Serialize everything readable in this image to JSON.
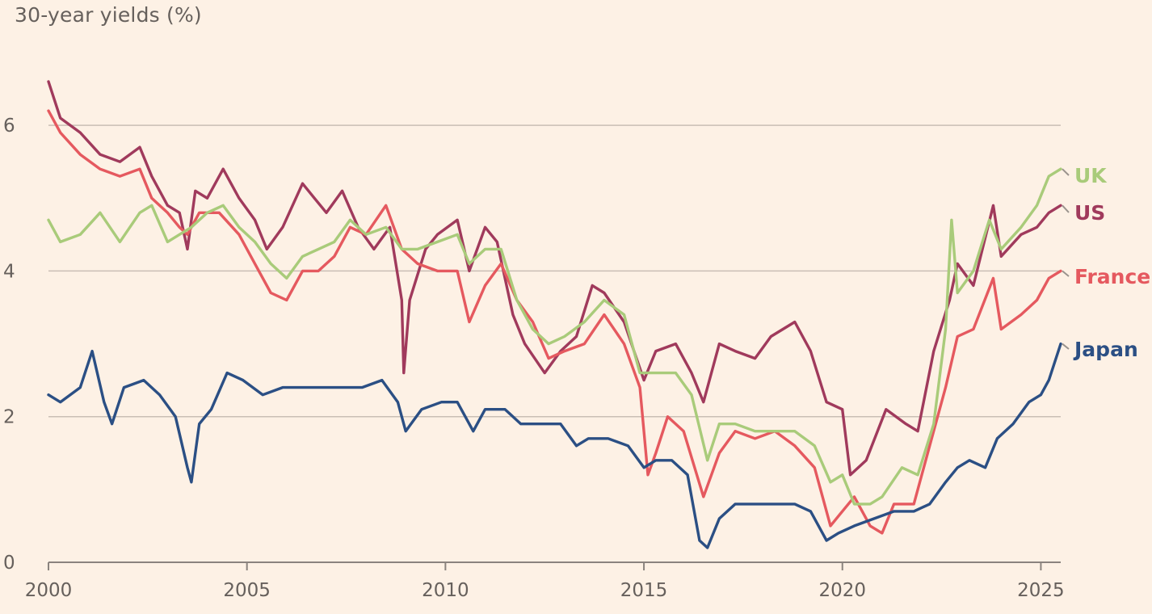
{
  "chart_data": {
    "type": "line",
    "title": "",
    "ylabel": "30-year yields (%)",
    "xlabel": "",
    "xlim": [
      2000,
      2025.5
    ],
    "ylim": [
      0,
      6.8
    ],
    "x_ticks": [
      2000,
      2005,
      2010,
      2015,
      2020,
      2025
    ],
    "y_ticks": [
      0,
      2,
      4,
      6
    ],
    "grid": "horizontal",
    "legend": "direct labels at right end of each line",
    "colors": {
      "UK": "#A9CB7A",
      "US": "#A03A5C",
      "France": "#E5595F",
      "Japan": "#2B4F84"
    },
    "series": [
      {
        "name": "US",
        "points": [
          [
            2000.0,
            6.6
          ],
          [
            2000.3,
            6.1
          ],
          [
            2000.8,
            5.9
          ],
          [
            2001.3,
            5.6
          ],
          [
            2001.8,
            5.5
          ],
          [
            2002.3,
            5.7
          ],
          [
            2002.6,
            5.3
          ],
          [
            2003.0,
            4.9
          ],
          [
            2003.3,
            4.8
          ],
          [
            2003.5,
            4.3
          ],
          [
            2003.7,
            5.1
          ],
          [
            2004.0,
            5.0
          ],
          [
            2004.4,
            5.4
          ],
          [
            2004.8,
            5.0
          ],
          [
            2005.2,
            4.7
          ],
          [
            2005.5,
            4.3
          ],
          [
            2005.9,
            4.6
          ],
          [
            2006.4,
            5.2
          ],
          [
            2006.7,
            5.0
          ],
          [
            2007.0,
            4.8
          ],
          [
            2007.4,
            5.1
          ],
          [
            2007.8,
            4.6
          ],
          [
            2008.2,
            4.3
          ],
          [
            2008.6,
            4.6
          ],
          [
            2008.9,
            3.6
          ],
          [
            2008.95,
            2.6
          ],
          [
            2009.1,
            3.6
          ],
          [
            2009.5,
            4.3
          ],
          [
            2009.8,
            4.5
          ],
          [
            2010.3,
            4.7
          ],
          [
            2010.6,
            4.0
          ],
          [
            2011.0,
            4.6
          ],
          [
            2011.3,
            4.4
          ],
          [
            2011.7,
            3.4
          ],
          [
            2012.0,
            3.0
          ],
          [
            2012.5,
            2.6
          ],
          [
            2012.9,
            2.9
          ],
          [
            2013.3,
            3.1
          ],
          [
            2013.7,
            3.8
          ],
          [
            2014.0,
            3.7
          ],
          [
            2014.5,
            3.3
          ],
          [
            2015.0,
            2.5
          ],
          [
            2015.3,
            2.9
          ],
          [
            2015.8,
            3.0
          ],
          [
            2016.2,
            2.6
          ],
          [
            2016.5,
            2.2
          ],
          [
            2016.9,
            3.0
          ],
          [
            2017.3,
            2.9
          ],
          [
            2017.8,
            2.8
          ],
          [
            2018.2,
            3.1
          ],
          [
            2018.8,
            3.3
          ],
          [
            2019.2,
            2.9
          ],
          [
            2019.6,
            2.2
          ],
          [
            2020.0,
            2.1
          ],
          [
            2020.2,
            1.2
          ],
          [
            2020.6,
            1.4
          ],
          [
            2021.1,
            2.1
          ],
          [
            2021.6,
            1.9
          ],
          [
            2021.9,
            1.8
          ],
          [
            2022.3,
            2.9
          ],
          [
            2022.7,
            3.6
          ],
          [
            2022.9,
            4.1
          ],
          [
            2023.3,
            3.8
          ],
          [
            2023.8,
            4.9
          ],
          [
            2024.0,
            4.2
          ],
          [
            2024.5,
            4.5
          ],
          [
            2024.9,
            4.6
          ],
          [
            2025.2,
            4.8
          ],
          [
            2025.5,
            4.9
          ]
        ]
      },
      {
        "name": "France",
        "points": [
          [
            2000.0,
            6.2
          ],
          [
            2000.3,
            5.9
          ],
          [
            2000.8,
            5.6
          ],
          [
            2001.3,
            5.4
          ],
          [
            2001.8,
            5.3
          ],
          [
            2002.3,
            5.4
          ],
          [
            2002.6,
            5.0
          ],
          [
            2003.0,
            4.8
          ],
          [
            2003.3,
            4.6
          ],
          [
            2003.5,
            4.5
          ],
          [
            2003.8,
            4.8
          ],
          [
            2004.3,
            4.8
          ],
          [
            2004.8,
            4.5
          ],
          [
            2005.2,
            4.1
          ],
          [
            2005.6,
            3.7
          ],
          [
            2006.0,
            3.6
          ],
          [
            2006.4,
            4.0
          ],
          [
            2006.8,
            4.0
          ],
          [
            2007.2,
            4.2
          ],
          [
            2007.6,
            4.6
          ],
          [
            2008.0,
            4.5
          ],
          [
            2008.5,
            4.9
          ],
          [
            2008.9,
            4.3
          ],
          [
            2009.3,
            4.1
          ],
          [
            2009.8,
            4.0
          ],
          [
            2010.3,
            4.0
          ],
          [
            2010.6,
            3.3
          ],
          [
            2011.0,
            3.8
          ],
          [
            2011.4,
            4.1
          ],
          [
            2011.8,
            3.6
          ],
          [
            2012.2,
            3.3
          ],
          [
            2012.6,
            2.8
          ],
          [
            2013.0,
            2.9
          ],
          [
            2013.5,
            3.0
          ],
          [
            2014.0,
            3.4
          ],
          [
            2014.5,
            3.0
          ],
          [
            2014.9,
            2.4
          ],
          [
            2015.1,
            1.2
          ],
          [
            2015.3,
            1.5
          ],
          [
            2015.6,
            2.0
          ],
          [
            2016.0,
            1.8
          ],
          [
            2016.5,
            0.9
          ],
          [
            2016.9,
            1.5
          ],
          [
            2017.3,
            1.8
          ],
          [
            2017.8,
            1.7
          ],
          [
            2018.3,
            1.8
          ],
          [
            2018.8,
            1.6
          ],
          [
            2019.3,
            1.3
          ],
          [
            2019.7,
            0.5
          ],
          [
            2020.0,
            0.7
          ],
          [
            2020.3,
            0.9
          ],
          [
            2020.7,
            0.5
          ],
          [
            2021.0,
            0.4
          ],
          [
            2021.3,
            0.8
          ],
          [
            2021.8,
            0.8
          ],
          [
            2022.2,
            1.6
          ],
          [
            2022.6,
            2.4
          ],
          [
            2022.9,
            3.1
          ],
          [
            2023.3,
            3.2
          ],
          [
            2023.8,
            3.9
          ],
          [
            2024.0,
            3.2
          ],
          [
            2024.5,
            3.4
          ],
          [
            2024.9,
            3.6
          ],
          [
            2025.2,
            3.9
          ],
          [
            2025.5,
            4.0
          ]
        ]
      },
      {
        "name": "UK",
        "points": [
          [
            2000.0,
            4.7
          ],
          [
            2000.3,
            4.4
          ],
          [
            2000.8,
            4.5
          ],
          [
            2001.3,
            4.8
          ],
          [
            2001.8,
            4.4
          ],
          [
            2002.3,
            4.8
          ],
          [
            2002.6,
            4.9
          ],
          [
            2003.0,
            4.4
          ],
          [
            2003.3,
            4.5
          ],
          [
            2003.6,
            4.6
          ],
          [
            2004.0,
            4.8
          ],
          [
            2004.4,
            4.9
          ],
          [
            2004.8,
            4.6
          ],
          [
            2005.2,
            4.4
          ],
          [
            2005.6,
            4.1
          ],
          [
            2006.0,
            3.9
          ],
          [
            2006.4,
            4.2
          ],
          [
            2006.8,
            4.3
          ],
          [
            2007.2,
            4.4
          ],
          [
            2007.6,
            4.7
          ],
          [
            2008.0,
            4.5
          ],
          [
            2008.5,
            4.6
          ],
          [
            2008.9,
            4.3
          ],
          [
            2009.3,
            4.3
          ],
          [
            2009.8,
            4.4
          ],
          [
            2010.3,
            4.5
          ],
          [
            2010.6,
            4.1
          ],
          [
            2011.0,
            4.3
          ],
          [
            2011.4,
            4.3
          ],
          [
            2011.8,
            3.6
          ],
          [
            2012.2,
            3.2
          ],
          [
            2012.6,
            3.0
          ],
          [
            2013.0,
            3.1
          ],
          [
            2013.5,
            3.3
          ],
          [
            2014.0,
            3.6
          ],
          [
            2014.5,
            3.4
          ],
          [
            2014.9,
            2.6
          ],
          [
            2015.3,
            2.6
          ],
          [
            2015.8,
            2.6
          ],
          [
            2016.2,
            2.3
          ],
          [
            2016.6,
            1.4
          ],
          [
            2016.9,
            1.9
          ],
          [
            2017.3,
            1.9
          ],
          [
            2017.8,
            1.8
          ],
          [
            2018.3,
            1.8
          ],
          [
            2018.8,
            1.8
          ],
          [
            2019.3,
            1.6
          ],
          [
            2019.7,
            1.1
          ],
          [
            2020.0,
            1.2
          ],
          [
            2020.3,
            0.8
          ],
          [
            2020.7,
            0.8
          ],
          [
            2021.0,
            0.9
          ],
          [
            2021.5,
            1.3
          ],
          [
            2021.9,
            1.2
          ],
          [
            2022.3,
            1.9
          ],
          [
            2022.6,
            3.2
          ],
          [
            2022.75,
            4.7
          ],
          [
            2022.9,
            3.7
          ],
          [
            2023.3,
            4.0
          ],
          [
            2023.7,
            4.7
          ],
          [
            2024.0,
            4.3
          ],
          [
            2024.5,
            4.6
          ],
          [
            2024.9,
            4.9
          ],
          [
            2025.2,
            5.3
          ],
          [
            2025.5,
            5.4
          ]
        ]
      },
      {
        "name": "Japan",
        "points": [
          [
            2000.0,
            2.3
          ],
          [
            2000.3,
            2.2
          ],
          [
            2000.8,
            2.4
          ],
          [
            2001.1,
            2.9
          ],
          [
            2001.4,
            2.2
          ],
          [
            2001.6,
            1.9
          ],
          [
            2001.9,
            2.4
          ],
          [
            2002.4,
            2.5
          ],
          [
            2002.8,
            2.3
          ],
          [
            2003.2,
            2.0
          ],
          [
            2003.5,
            1.3
          ],
          [
            2003.6,
            1.1
          ],
          [
            2003.8,
            1.9
          ],
          [
            2004.1,
            2.1
          ],
          [
            2004.5,
            2.6
          ],
          [
            2004.9,
            2.5
          ],
          [
            2005.4,
            2.3
          ],
          [
            2005.9,
            2.4
          ],
          [
            2006.4,
            2.4
          ],
          [
            2006.9,
            2.4
          ],
          [
            2007.4,
            2.4
          ],
          [
            2007.9,
            2.4
          ],
          [
            2008.4,
            2.5
          ],
          [
            2008.8,
            2.2
          ],
          [
            2009.0,
            1.8
          ],
          [
            2009.4,
            2.1
          ],
          [
            2009.9,
            2.2
          ],
          [
            2010.3,
            2.2
          ],
          [
            2010.7,
            1.8
          ],
          [
            2011.0,
            2.1
          ],
          [
            2011.5,
            2.1
          ],
          [
            2011.9,
            1.9
          ],
          [
            2012.4,
            1.9
          ],
          [
            2012.9,
            1.9
          ],
          [
            2013.3,
            1.6
          ],
          [
            2013.6,
            1.7
          ],
          [
            2014.1,
            1.7
          ],
          [
            2014.6,
            1.6
          ],
          [
            2015.0,
            1.3
          ],
          [
            2015.3,
            1.4
          ],
          [
            2015.7,
            1.4
          ],
          [
            2016.1,
            1.2
          ],
          [
            2016.4,
            0.3
          ],
          [
            2016.6,
            0.2
          ],
          [
            2016.9,
            0.6
          ],
          [
            2017.3,
            0.8
          ],
          [
            2017.8,
            0.8
          ],
          [
            2018.3,
            0.8
          ],
          [
            2018.8,
            0.8
          ],
          [
            2019.2,
            0.7
          ],
          [
            2019.6,
            0.3
          ],
          [
            2019.9,
            0.4
          ],
          [
            2020.3,
            0.5
          ],
          [
            2020.8,
            0.6
          ],
          [
            2021.3,
            0.7
          ],
          [
            2021.8,
            0.7
          ],
          [
            2022.2,
            0.8
          ],
          [
            2022.6,
            1.1
          ],
          [
            2022.9,
            1.3
          ],
          [
            2023.2,
            1.4
          ],
          [
            2023.6,
            1.3
          ],
          [
            2023.9,
            1.7
          ],
          [
            2024.3,
            1.9
          ],
          [
            2024.7,
            2.2
          ],
          [
            2025.0,
            2.3
          ],
          [
            2025.2,
            2.5
          ],
          [
            2025.5,
            3.0
          ]
        ]
      }
    ],
    "end_labels": [
      {
        "name": "UK",
        "text": "UK"
      },
      {
        "name": "US",
        "text": "US"
      },
      {
        "name": "France",
        "text": "France"
      },
      {
        "name": "Japan",
        "text": "Japan"
      }
    ]
  }
}
